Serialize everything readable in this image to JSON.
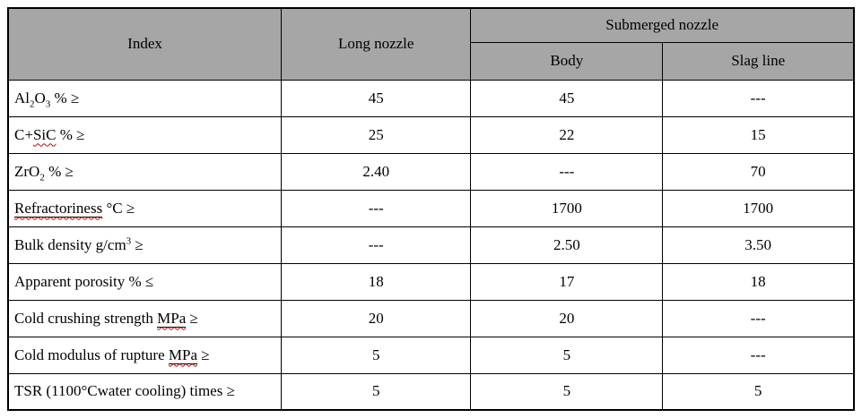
{
  "colors": {
    "header_bg": "#a6a6a6",
    "border": "#000000",
    "spellcheck_squiggle": "#cc0000"
  },
  "table": {
    "header": {
      "index": "Index",
      "long_nozzle": "Long nozzle",
      "submerged_nozzle": "Submerged nozzle",
      "body": "Body",
      "slag_line": "Slag line"
    },
    "rows": [
      {
        "label_parts": [
          {
            "t": "Al"
          },
          {
            "t": "2",
            "sub": true
          },
          {
            "t": "O"
          },
          {
            "t": "3",
            "sub": true
          },
          {
            "t": " % ≥"
          }
        ],
        "values": [
          "45",
          "45",
          "---"
        ]
      },
      {
        "label_parts": [
          {
            "t": "C+"
          },
          {
            "t": "SiC",
            "err": true
          },
          {
            "t": " % ≥"
          }
        ],
        "values": [
          "25",
          "22",
          "15"
        ]
      },
      {
        "label_parts": [
          {
            "t": "ZrO"
          },
          {
            "t": "2",
            "sub": true
          },
          {
            "t": " % ≥"
          }
        ],
        "values": [
          "2.40",
          "---",
          "70"
        ]
      },
      {
        "label_parts": [
          {
            "t": "Refractoriness",
            "err": true,
            "u": true
          },
          {
            "t": " °C ≥"
          }
        ],
        "values": [
          "---",
          "1700",
          "1700"
        ]
      },
      {
        "label_parts": [
          {
            "t": "Bulk density g/cm"
          },
          {
            "t": "3",
            "sup": true
          },
          {
            "t": " ≥"
          }
        ],
        "values": [
          "---",
          "2.50",
          "3.50"
        ]
      },
      {
        "label_parts": [
          {
            "t": "Apparent porosity % ≤"
          }
        ],
        "values": [
          "18",
          "17",
          "18"
        ]
      },
      {
        "label_parts": [
          {
            "t": "Cold crushing strength "
          },
          {
            "t": "MPa",
            "err": true,
            "u": true
          },
          {
            "t": " ≥"
          }
        ],
        "values": [
          "20",
          "20",
          "---"
        ]
      },
      {
        "label_parts": [
          {
            "t": "Cold modulus of rupture "
          },
          {
            "t": "MPa",
            "err": true,
            "u": true
          },
          {
            "t": " ≥"
          }
        ],
        "values": [
          "5",
          "5",
          "---"
        ]
      },
      {
        "label_parts": [
          {
            "t": "TSR (1100°Cwater cooling) times ≥"
          }
        ],
        "values": [
          "5",
          "5",
          "5"
        ]
      }
    ]
  }
}
